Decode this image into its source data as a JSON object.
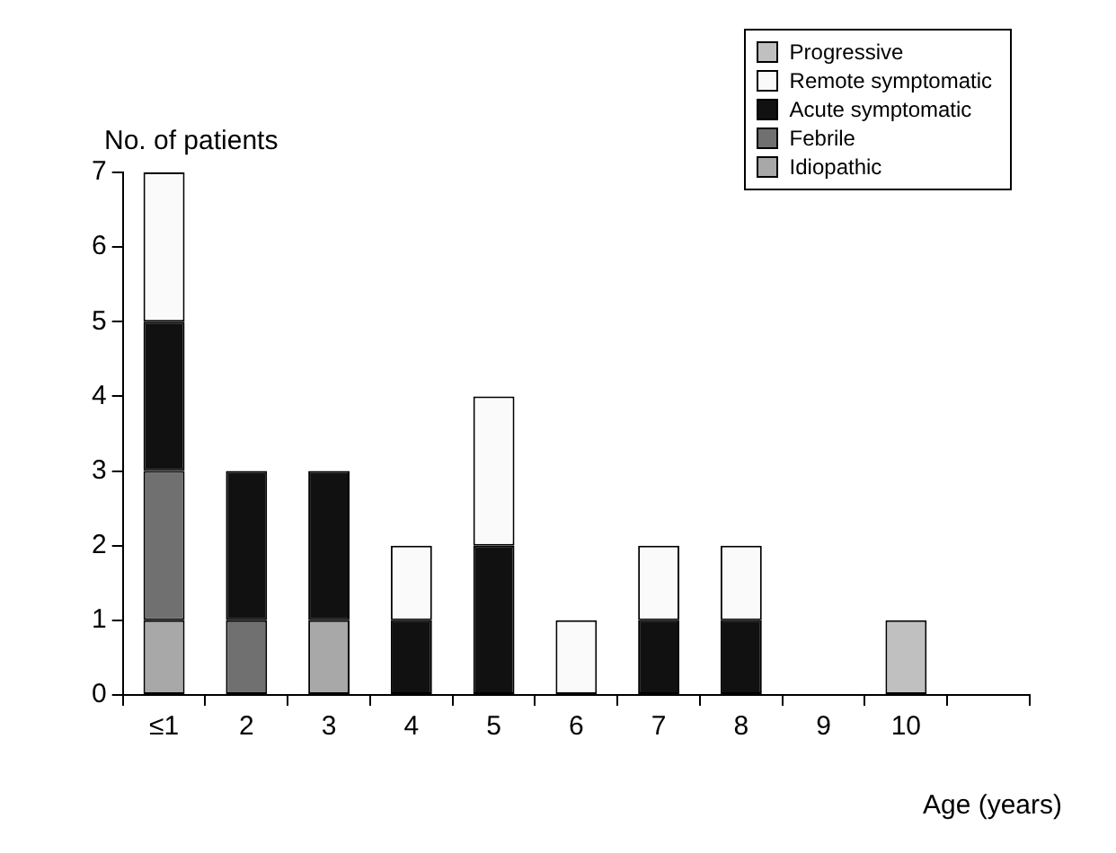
{
  "chart_data": {
    "type": "bar",
    "stacked": true,
    "ylabel": "No. of patients",
    "xlabel": "Age (years)",
    "categories": [
      "≤1",
      "2",
      "3",
      "4",
      "5",
      "6",
      "7",
      "8",
      "9",
      "10",
      null
    ],
    "series": [
      {
        "name": "Idiopathic",
        "color": "#a8a8a8",
        "values": [
          1,
          0,
          1,
          0,
          0,
          0,
          0,
          0,
          0,
          0,
          null
        ]
      },
      {
        "name": "Febrile",
        "color": "#707070",
        "values": [
          2,
          1,
          0,
          0,
          0,
          0,
          0,
          0,
          0,
          0,
          null
        ]
      },
      {
        "name": "Acute symptomatic",
        "color": "#111111",
        "values": [
          2,
          2,
          2,
          1,
          2,
          0,
          1,
          1,
          0,
          0,
          null
        ]
      },
      {
        "name": "Remote symptomatic",
        "color": "#fafafa",
        "values": [
          2,
          0,
          0,
          1,
          2,
          1,
          1,
          1,
          0,
          0,
          null
        ]
      },
      {
        "name": "Progressive",
        "color": "#c0c0c0",
        "values": [
          0,
          0,
          0,
          0,
          0,
          0,
          0,
          0,
          0,
          1,
          null
        ]
      }
    ],
    "ylim": [
      0,
      7
    ],
    "yticks": [
      0,
      1,
      2,
      3,
      4,
      5,
      6,
      7
    ],
    "grid": false,
    "legend": "top right"
  }
}
